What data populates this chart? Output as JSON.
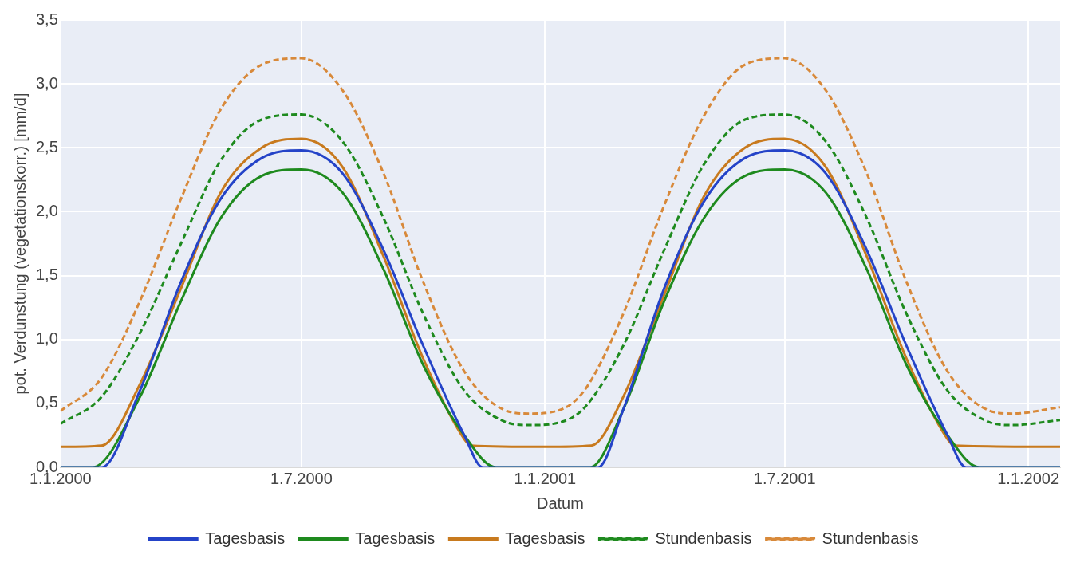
{
  "chart_data": {
    "type": "line",
    "xlabel": "Datum",
    "ylabel": "pot. Verdunstung (vegetationskorr.) [mm/d]",
    "xlim": [
      "2000-01-01",
      "2002-01-25"
    ],
    "xticks": [
      {
        "value": "2000-01-01",
        "label": "1.1.2000"
      },
      {
        "value": "2000-07-01",
        "label": "1.7.2000"
      },
      {
        "value": "2001-01-01",
        "label": "1.1.2001"
      },
      {
        "value": "2001-07-01",
        "label": "1.7.2001"
      },
      {
        "value": "2002-01-01",
        "label": "1.1.2002"
      }
    ],
    "ylim": [
      0,
      3.5
    ],
    "yticks": [
      {
        "value": 0,
        "label": "0,0"
      },
      {
        "value": 0.5,
        "label": "0,5"
      },
      {
        "value": 1,
        "label": "1,0"
      },
      {
        "value": 1.5,
        "label": "1,5"
      },
      {
        "value": 2,
        "label": "2,0"
      },
      {
        "value": 2.5,
        "label": "2,5"
      },
      {
        "value": 3,
        "label": "3,0"
      },
      {
        "value": 3.5,
        "label": "3,5"
      }
    ],
    "grid": true,
    "legend": "bottom",
    "marker": "none",
    "series": [
      {
        "name": "Tagesbasis",
        "color": "#2443c8",
        "line_style": "solid",
        "x": [
          "2000-01-01",
          "2000-02-01",
          "2000-03-01",
          "2000-04-01",
          "2000-05-01",
          "2000-06-01",
          "2000-07-01",
          "2000-08-01",
          "2000-09-01",
          "2000-10-01",
          "2000-11-01",
          "2000-11-15",
          "2001-02-10",
          "2001-03-01",
          "2001-04-01",
          "2001-05-01",
          "2001-06-01",
          "2001-07-01",
          "2001-08-01",
          "2001-09-01",
          "2001-10-01",
          "2001-11-01",
          "2001-11-15",
          "2002-01-25"
        ],
        "values": [
          0,
          0,
          0.6,
          1.45,
          2.1,
          2.42,
          2.48,
          2.3,
          1.7,
          0.95,
          0.25,
          0,
          0,
          0.45,
          1.4,
          2.08,
          2.42,
          2.48,
          2.3,
          1.7,
          0.95,
          0.25,
          0,
          0
        ]
      },
      {
        "name": "Tagesbasis",
        "color": "#1e8a1e",
        "line_style": "solid",
        "x": [
          "2000-01-01",
          "2000-01-25",
          "2000-03-01",
          "2000-04-01",
          "2000-05-01",
          "2000-06-01",
          "2000-07-01",
          "2000-08-01",
          "2000-09-01",
          "2000-10-01",
          "2000-11-01",
          "2000-11-25",
          "2001-02-04",
          "2001-03-01",
          "2001-04-01",
          "2001-05-01",
          "2001-06-01",
          "2001-07-01",
          "2001-08-01",
          "2001-09-01",
          "2001-10-01",
          "2001-11-01",
          "2001-11-25",
          "2002-01-25"
        ],
        "values": [
          0,
          0,
          0.55,
          1.3,
          1.95,
          2.28,
          2.33,
          2.15,
          1.55,
          0.8,
          0.25,
          0,
          0,
          0.45,
          1.3,
          1.95,
          2.28,
          2.33,
          2.15,
          1.55,
          0.8,
          0.25,
          0,
          0
        ]
      },
      {
        "name": "Tagesbasis",
        "color": "#c87a1e",
        "line_style": "solid",
        "x": [
          "2000-01-01",
          "2000-02-01",
          "2000-03-01",
          "2000-04-01",
          "2000-05-01",
          "2000-06-01",
          "2000-07-01",
          "2000-08-01",
          "2000-09-01",
          "2000-10-01",
          "2000-11-01",
          "2000-11-06",
          "2001-01-01",
          "2001-02-05",
          "2001-03-01",
          "2001-04-01",
          "2001-05-01",
          "2001-06-01",
          "2001-07-01",
          "2001-08-01",
          "2001-09-01",
          "2001-10-01",
          "2001-11-01",
          "2001-11-06",
          "2002-01-25"
        ],
        "values": [
          0.16,
          0.17,
          0.65,
          1.4,
          2.15,
          2.5,
          2.57,
          2.35,
          1.65,
          0.85,
          0.22,
          0.17,
          0.16,
          0.17,
          0.55,
          1.35,
          2.12,
          2.5,
          2.57,
          2.35,
          1.65,
          0.85,
          0.22,
          0.17,
          0.16
        ]
      },
      {
        "name": "Stundenbasis",
        "color": "#1e8a1e",
        "line_style": "dashed",
        "x": [
          "2000-01-01",
          "2000-02-01",
          "2000-03-01",
          "2000-04-01",
          "2000-05-01",
          "2000-06-01",
          "2000-07-01",
          "2000-08-01",
          "2000-09-01",
          "2000-10-01",
          "2000-11-01",
          "2000-12-01",
          "2000-12-20",
          "2001-01-15",
          "2001-02-01",
          "2001-03-01",
          "2001-04-01",
          "2001-05-01",
          "2001-06-01",
          "2001-07-01",
          "2001-08-01",
          "2001-09-01",
          "2001-10-01",
          "2001-11-01",
          "2001-12-01",
          "2001-12-20",
          "2002-01-25"
        ],
        "values": [
          0.34,
          0.55,
          1.05,
          1.75,
          2.4,
          2.72,
          2.76,
          2.55,
          1.95,
          1.2,
          0.6,
          0.36,
          0.33,
          0.36,
          0.48,
          0.95,
          1.7,
          2.37,
          2.72,
          2.76,
          2.55,
          1.95,
          1.2,
          0.6,
          0.36,
          0.33,
          0.37
        ]
      },
      {
        "name": "Stundenbasis",
        "color": "#d8893a",
        "line_style": "dashed",
        "x": [
          "2000-01-01",
          "2000-02-01",
          "2000-03-01",
          "2000-04-01",
          "2000-05-01",
          "2000-06-01",
          "2000-07-01",
          "2000-08-01",
          "2000-09-01",
          "2000-10-01",
          "2000-11-01",
          "2000-12-01",
          "2000-12-20",
          "2001-01-15",
          "2001-02-01",
          "2001-03-01",
          "2001-04-01",
          "2001-05-01",
          "2001-06-01",
          "2001-07-01",
          "2001-08-01",
          "2001-09-01",
          "2001-10-01",
          "2001-11-01",
          "2001-12-01",
          "2001-12-20",
          "2002-01-25"
        ],
        "values": [
          0.44,
          0.7,
          1.3,
          2.1,
          2.8,
          3.15,
          3.2,
          2.95,
          2.3,
          1.45,
          0.75,
          0.45,
          0.42,
          0.46,
          0.62,
          1.2,
          2.05,
          2.75,
          3.15,
          3.2,
          2.95,
          2.3,
          1.45,
          0.75,
          0.45,
          0.42,
          0.47
        ]
      }
    ]
  }
}
